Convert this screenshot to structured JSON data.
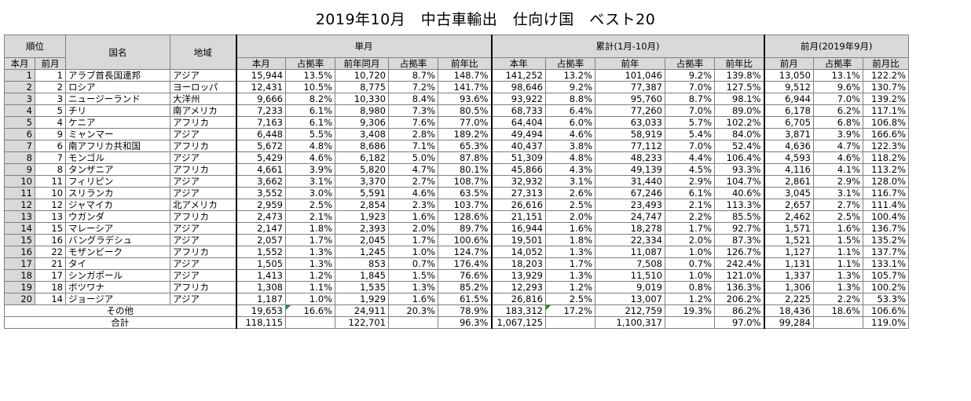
{
  "title": "2019年10月　中古車輸出　仕向け国　ベスト20",
  "headers": {
    "rank": "順位",
    "country": "国名",
    "region": "地域",
    "single_month": "単月",
    "cumulative": "累計(1月-10月)",
    "prev_month": "前月(2019年9月)",
    "this_month_rank": "本月",
    "prev_month_rank": "前月",
    "sm_cols": [
      "本月",
      "占拠率",
      "前年同月",
      "占拠率",
      "前年比"
    ],
    "cum_cols": [
      "本年",
      "占拠率",
      "前年",
      "占拠率",
      "前年比"
    ],
    "pm_cols": [
      "前月",
      "占拠率",
      "前月比"
    ]
  },
  "rows": [
    {
      "rank": "1",
      "prev": "1",
      "country": "アラブ首長国連邦",
      "region": "アジア",
      "v": [
        "15,944",
        "13.5%",
        "10,720",
        "8.7%",
        "148.7%",
        "141,252",
        "13.2%",
        "101,046",
        "9.2%",
        "139.8%",
        "13,050",
        "13.1%",
        "122.2%"
      ]
    },
    {
      "rank": "2",
      "prev": "2",
      "country": "ロシア",
      "region": "ヨーロッパ",
      "v": [
        "12,431",
        "10.5%",
        "8,775",
        "7.2%",
        "141.7%",
        "98,646",
        "9.2%",
        "77,387",
        "7.0%",
        "127.5%",
        "9,512",
        "9.6%",
        "130.7%"
      ]
    },
    {
      "rank": "3",
      "prev": "3",
      "country": "ニュージーランド",
      "region": "大洋州",
      "v": [
        "9,666",
        "8.2%",
        "10,330",
        "8.4%",
        "93.6%",
        "93,922",
        "8.8%",
        "95,760",
        "8.7%",
        "98.1%",
        "6,944",
        "7.0%",
        "139.2%"
      ]
    },
    {
      "rank": "4",
      "prev": "5",
      "country": "チリ",
      "region": "南アメリカ",
      "v": [
        "7,233",
        "6.1%",
        "8,980",
        "7.3%",
        "80.5%",
        "68,733",
        "6.4%",
        "77,260",
        "7.0%",
        "89.0%",
        "6,178",
        "6.2%",
        "117.1%"
      ]
    },
    {
      "rank": "5",
      "prev": "4",
      "country": "ケニア",
      "region": "アフリカ",
      "v": [
        "7,163",
        "6.1%",
        "9,306",
        "7.6%",
        "77.0%",
        "64,404",
        "6.0%",
        "63,033",
        "5.7%",
        "102.2%",
        "6,705",
        "6.8%",
        "106.8%"
      ]
    },
    {
      "rank": "6",
      "prev": "9",
      "country": "ミャンマー",
      "region": "アジア",
      "v": [
        "6,448",
        "5.5%",
        "3,408",
        "2.8%",
        "189.2%",
        "49,494",
        "4.6%",
        "58,919",
        "5.4%",
        "84.0%",
        "3,871",
        "3.9%",
        "166.6%"
      ]
    },
    {
      "rank": "7",
      "prev": "6",
      "country": "南アフリカ共和国",
      "region": "アフリカ",
      "v": [
        "5,672",
        "4.8%",
        "8,686",
        "7.1%",
        "65.3%",
        "40,437",
        "3.8%",
        "77,112",
        "7.0%",
        "52.4%",
        "4,636",
        "4.7%",
        "122.3%"
      ]
    },
    {
      "rank": "8",
      "prev": "7",
      "country": "モンゴル",
      "region": "アジア",
      "v": [
        "5,429",
        "4.6%",
        "6,182",
        "5.0%",
        "87.8%",
        "51,309",
        "4.8%",
        "48,233",
        "4.4%",
        "106.4%",
        "4,593",
        "4.6%",
        "118.2%"
      ]
    },
    {
      "rank": "9",
      "prev": "8",
      "country": "タンザニア",
      "region": "アフリカ",
      "v": [
        "4,661",
        "3.9%",
        "5,820",
        "4.7%",
        "80.1%",
        "45,866",
        "4.3%",
        "49,139",
        "4.5%",
        "93.3%",
        "4,116",
        "4.1%",
        "113.2%"
      ]
    },
    {
      "rank": "10",
      "prev": "11",
      "country": "フィリピン",
      "region": "アジア",
      "v": [
        "3,662",
        "3.1%",
        "3,370",
        "2.7%",
        "108.7%",
        "32,932",
        "3.1%",
        "31,440",
        "2.9%",
        "104.7%",
        "2,861",
        "2.9%",
        "128.0%"
      ]
    },
    {
      "rank": "11",
      "prev": "10",
      "country": "スリランカ",
      "region": "アジア",
      "v": [
        "3,552",
        "3.0%",
        "5,591",
        "4.6%",
        "63.5%",
        "27,313",
        "2.6%",
        "67,246",
        "6.1%",
        "40.6%",
        "3,045",
        "3.1%",
        "116.7%"
      ]
    },
    {
      "rank": "12",
      "prev": "12",
      "country": "ジャマイカ",
      "region": "北アメリカ",
      "v": [
        "2,959",
        "2.5%",
        "2,854",
        "2.3%",
        "103.7%",
        "26,616",
        "2.5%",
        "23,493",
        "2.1%",
        "113.3%",
        "2,657",
        "2.7%",
        "111.4%"
      ]
    },
    {
      "rank": "13",
      "prev": "13",
      "country": "ウガンダ",
      "region": "アフリカ",
      "v": [
        "2,473",
        "2.1%",
        "1,923",
        "1.6%",
        "128.6%",
        "21,151",
        "2.0%",
        "24,747",
        "2.2%",
        "85.5%",
        "2,462",
        "2.5%",
        "100.4%"
      ]
    },
    {
      "rank": "14",
      "prev": "15",
      "country": "マレーシア",
      "region": "アジア",
      "v": [
        "2,147",
        "1.8%",
        "2,393",
        "2.0%",
        "89.7%",
        "16,944",
        "1.6%",
        "18,278",
        "1.7%",
        "92.7%",
        "1,571",
        "1.6%",
        "136.7%"
      ]
    },
    {
      "rank": "15",
      "prev": "16",
      "country": "バングラデシュ",
      "region": "アジア",
      "v": [
        "2,057",
        "1.7%",
        "2,045",
        "1.7%",
        "100.6%",
        "19,501",
        "1.8%",
        "22,334",
        "2.0%",
        "87.3%",
        "1,521",
        "1.5%",
        "135.2%"
      ]
    },
    {
      "rank": "16",
      "prev": "22",
      "country": "モザンビーク",
      "region": "アフリカ",
      "v": [
        "1,552",
        "1.3%",
        "1,245",
        "1.0%",
        "124.7%",
        "14,052",
        "1.3%",
        "11,087",
        "1.0%",
        "126.7%",
        "1,127",
        "1.1%",
        "137.7%"
      ]
    },
    {
      "rank": "17",
      "prev": "21",
      "country": "タイ",
      "region": "アジア",
      "v": [
        "1,505",
        "1.3%",
        "853",
        "0.7%",
        "176.4%",
        "18,203",
        "1.7%",
        "7,508",
        "0.7%",
        "242.4%",
        "1,131",
        "1.1%",
        "133.1%"
      ]
    },
    {
      "rank": "18",
      "prev": "17",
      "country": "シンガポール",
      "region": "アジア",
      "v": [
        "1,413",
        "1.2%",
        "1,845",
        "1.5%",
        "76.6%",
        "13,929",
        "1.3%",
        "11,510",
        "1.0%",
        "121.0%",
        "1,337",
        "1.3%",
        "105.7%"
      ]
    },
    {
      "rank": "19",
      "prev": "18",
      "country": "ボツワナ",
      "region": "アフリカ",
      "v": [
        "1,308",
        "1.1%",
        "1,535",
        "1.3%",
        "85.2%",
        "12,293",
        "1.2%",
        "9,019",
        "0.8%",
        "136.3%",
        "1,306",
        "1.3%",
        "100.2%"
      ]
    },
    {
      "rank": "20",
      "prev": "14",
      "country": "ジョージア",
      "region": "アジア",
      "v": [
        "1,187",
        "1.0%",
        "1,929",
        "1.6%",
        "61.5%",
        "26,816",
        "2.5%",
        "13,007",
        "1.2%",
        "206.2%",
        "2,225",
        "2.2%",
        "53.3%"
      ]
    }
  ],
  "other": {
    "label": "その他",
    "v": [
      "19,653",
      "16.6%",
      "24,911",
      "20.3%",
      "78.9%",
      "183,312",
      "17.2%",
      "212,759",
      "19.3%",
      "86.2%",
      "18,436",
      "18.6%",
      "106.6%"
    ]
  },
  "total": {
    "label": "合計",
    "v": [
      "118,115",
      "",
      "122,701",
      "",
      "96.3%",
      "1,067,125",
      "",
      "1,100,317",
      "",
      "97.0%",
      "99,284",
      "",
      "119.0%"
    ]
  }
}
